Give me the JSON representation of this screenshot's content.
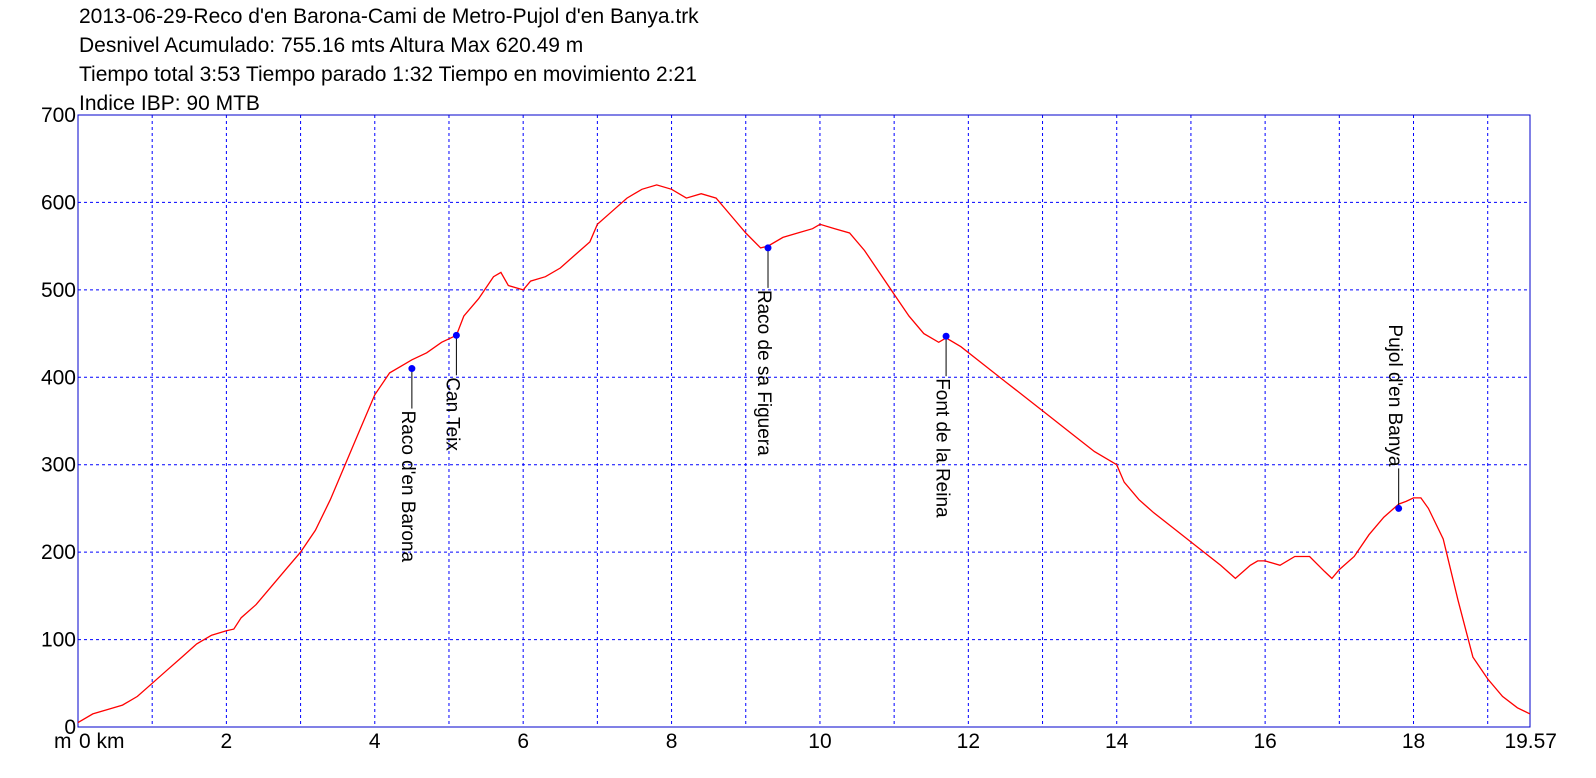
{
  "header": {
    "line1": "2013-06-29-Reco d'en Barona-Cami de Metro-Pujol d'en Banya.trk",
    "line2": "Desnivel Acumulado: 755.16 mts  Altura Max 620.49 m",
    "line3": "Tiempo total 3:53 Tiempo parado 1:32 Tiempo en movimiento 2:21",
    "line4": "Indice IBP: 90 MTB"
  },
  "axis": {
    "y_unit": "m",
    "x_unit": "0 km",
    "x_end_label": "19.57",
    "y_ticks": [
      "0",
      "100",
      "200",
      "300",
      "400",
      "500",
      "600",
      "700"
    ],
    "x_ticks": [
      "2",
      "4",
      "6",
      "8",
      "10",
      "12",
      "14",
      "16",
      "18"
    ]
  },
  "colors": {
    "profile": "#ff0000",
    "frame": "#0000cc",
    "grid": "#0000ff",
    "waypoint": "#0000ff"
  },
  "chart_data": {
    "type": "line",
    "xlabel": "km",
    "ylabel": "m",
    "xlim": [
      0,
      19.57
    ],
    "ylim": [
      0,
      700
    ],
    "grid": true,
    "series": [
      {
        "x": [
          0,
          0.2,
          0.4,
          0.6,
          0.8,
          1.0,
          1.2,
          1.4,
          1.6,
          1.8,
          2.0,
          2.1,
          2.2,
          2.4,
          2.6,
          2.8,
          3.0,
          3.2,
          3.4,
          3.6,
          3.8,
          4.0,
          4.2,
          4.4,
          4.5,
          4.7,
          4.9,
          5.1,
          5.2,
          5.4,
          5.6,
          5.7,
          5.8,
          6.0,
          6.1,
          6.3,
          6.5,
          6.7,
          6.9,
          7.0,
          7.2,
          7.4,
          7.6,
          7.8,
          8.0,
          8.2,
          8.4,
          8.6,
          8.8,
          9.0,
          9.2,
          9.3,
          9.5,
          9.7,
          9.9,
          10.0,
          10.2,
          10.4,
          10.6,
          10.8,
          11.0,
          11.2,
          11.4,
          11.6,
          11.7,
          11.9,
          12.2,
          12.5,
          12.8,
          13.1,
          13.4,
          13.7,
          14.0,
          14.1,
          14.3,
          14.5,
          14.8,
          15.1,
          15.4,
          15.6,
          15.8,
          15.9,
          16.0,
          16.2,
          16.4,
          16.6,
          16.8,
          16.9,
          17.0,
          17.2,
          17.4,
          17.6,
          17.8,
          17.9,
          18.0,
          18.1,
          18.2,
          18.4,
          18.6,
          18.8,
          19.0,
          19.2,
          19.4,
          19.57
        ],
        "y": [
          5,
          15,
          20,
          25,
          35,
          50,
          65,
          80,
          95,
          105,
          110,
          112,
          125,
          140,
          160,
          180,
          200,
          225,
          260,
          300,
          340,
          380,
          405,
          415,
          420,
          428,
          440,
          448,
          470,
          490,
          515,
          520,
          505,
          500,
          510,
          515,
          525,
          540,
          555,
          575,
          590,
          605,
          615,
          620,
          615,
          605,
          610,
          605,
          585,
          565,
          548,
          550,
          560,
          565,
          570,
          575,
          570,
          565,
          545,
          520,
          495,
          470,
          450,
          440,
          445,
          435,
          415,
          395,
          375,
          355,
          335,
          315,
          300,
          280,
          260,
          245,
          225,
          205,
          185,
          170,
          185,
          190,
          190,
          185,
          195,
          195,
          178,
          170,
          180,
          195,
          220,
          240,
          255,
          258,
          262,
          262,
          250,
          215,
          145,
          80,
          55,
          35,
          22,
          15
        ]
      }
    ],
    "annotations": [
      {
        "text": "Raco d'en Barona",
        "x": 4.5,
        "y": 410
      },
      {
        "text": "Can Teix",
        "x": 5.1,
        "y": 448
      },
      {
        "text": "Raco de sa Figuera",
        "x": 9.3,
        "y": 548
      },
      {
        "text": "Font de la Reina",
        "x": 11.7,
        "y": 447
      },
      {
        "text": "Pujol d'en Banya",
        "x": 17.8,
        "y": 250
      }
    ]
  }
}
